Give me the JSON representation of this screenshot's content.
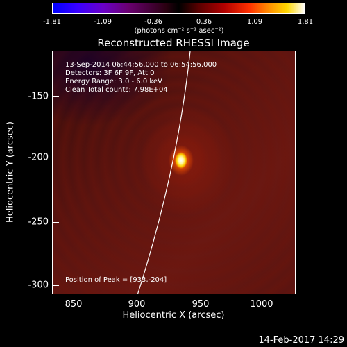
{
  "colorbar": {
    "ticks": [
      "-1.81",
      "-1.09",
      "-0.36",
      "0.36",
      "1.09",
      "1.81"
    ],
    "unit": "(photons cm⁻² s⁻¹ asec⁻²)"
  },
  "title": "Reconstructed RHESSI Image",
  "info": {
    "time_range": "13-Sep-2014 06:44:56.000 to 06:54:56.000",
    "detectors": "Detectors: 3F 6F 9F, Att 0",
    "energy": "Energy Range: 3.0 - 6.0 keV",
    "method": "Clean    Total counts: 7.98E+04"
  },
  "peak": "Position of Peak = [933,-204]",
  "axes": {
    "xlabel": "Heliocentric X (arcsec)",
    "ylabel": "Heliocentric Y (arcsec)",
    "xticks": [
      "850",
      "900",
      "950",
      "1000"
    ],
    "yticks": [
      "-150",
      "-200",
      "-250",
      "-300"
    ]
  },
  "datestamp": "14-Feb-2017 14:29"
}
